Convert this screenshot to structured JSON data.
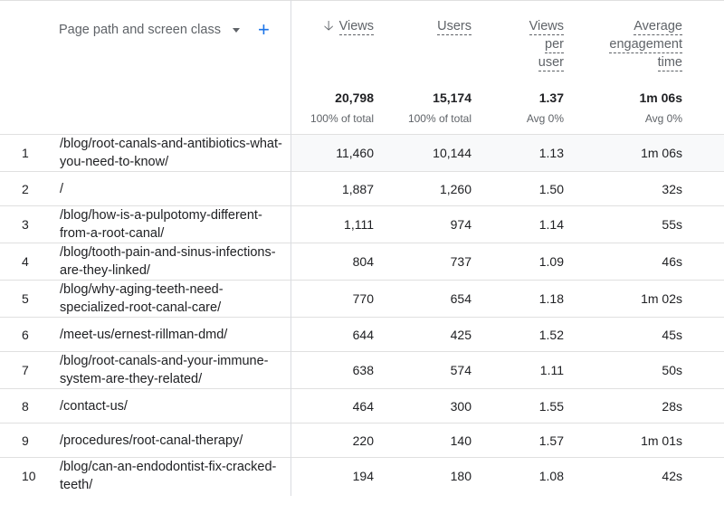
{
  "header": {
    "dimension_label": "Page path and screen class",
    "caret_icon": "chevron-down-icon",
    "add_icon": "plus-icon",
    "columns": {
      "views": "Views",
      "users": "Users",
      "views_per_user_1": "Views",
      "views_per_user_2": "per",
      "views_per_user_3": "user",
      "avg_eng_1": "Average",
      "avg_eng_2": "engagement",
      "avg_eng_3": "time"
    },
    "sort_icon": "arrow-down-icon"
  },
  "totals": {
    "views": "20,798",
    "users": "15,174",
    "views_per_user": "1.37",
    "avg_engagement": "1m 06s",
    "views_pct": "100% of total",
    "users_pct": "100% of total",
    "vpu_avg": "Avg 0%",
    "eng_avg": "Avg 0%"
  },
  "rows": [
    {
      "idx": "1",
      "path": "/blog/root-canals-and-antibiotics-what-you-need-to-know/",
      "views": "11,460",
      "users": "10,144",
      "vpu": "1.13",
      "eng": "1m 06s"
    },
    {
      "idx": "2",
      "path": "/",
      "views": "1,887",
      "users": "1,260",
      "vpu": "1.50",
      "eng": "32s"
    },
    {
      "idx": "3",
      "path": "/blog/how-is-a-pulpotomy-different-from-a-root-canal/",
      "views": "1,111",
      "users": "974",
      "vpu": "1.14",
      "eng": "55s"
    },
    {
      "idx": "4",
      "path": "/blog/tooth-pain-and-sinus-infections-are-they-linked/",
      "views": "804",
      "users": "737",
      "vpu": "1.09",
      "eng": "46s"
    },
    {
      "idx": "5",
      "path": "/blog/why-aging-teeth-need-specialized-root-canal-care/",
      "views": "770",
      "users": "654",
      "vpu": "1.18",
      "eng": "1m 02s"
    },
    {
      "idx": "6",
      "path": "/meet-us/ernest-rillman-dmd/",
      "views": "644",
      "users": "425",
      "vpu": "1.52",
      "eng": "45s"
    },
    {
      "idx": "7",
      "path": "/blog/root-canals-and-your-immune-system-are-they-related/",
      "views": "638",
      "users": "574",
      "vpu": "1.11",
      "eng": "50s"
    },
    {
      "idx": "8",
      "path": "/contact-us/",
      "views": "464",
      "users": "300",
      "vpu": "1.55",
      "eng": "28s"
    },
    {
      "idx": "9",
      "path": "/procedures/root-canal-therapy/",
      "views": "220",
      "users": "140",
      "vpu": "1.57",
      "eng": "1m 01s"
    },
    {
      "idx": "10",
      "path": "/blog/can-an-endodontist-fix-cracked-teeth/",
      "views": "194",
      "users": "180",
      "vpu": "1.08",
      "eng": "42s"
    }
  ]
}
